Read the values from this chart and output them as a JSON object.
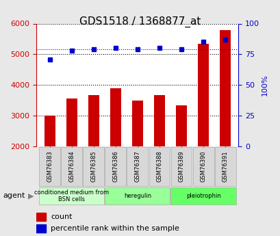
{
  "title": "GDS1518 / 1368877_at",
  "samples": [
    "GSM76383",
    "GSM76384",
    "GSM76385",
    "GSM76386",
    "GSM76387",
    "GSM76388",
    "GSM76389",
    "GSM76390",
    "GSM76391"
  ],
  "counts": [
    3000,
    3560,
    3670,
    3900,
    3490,
    3680,
    3330,
    5350,
    5780
  ],
  "percentiles": [
    71,
    78,
    79,
    80,
    79,
    80,
    79,
    85,
    87
  ],
  "ylim_left": [
    2000,
    6000
  ],
  "ylim_right": [
    0,
    100
  ],
  "yticks_left": [
    2000,
    3000,
    4000,
    5000,
    6000
  ],
  "yticks_right": [
    0,
    25,
    50,
    75,
    100
  ],
  "bar_color": "#cc0000",
  "dot_color": "#0000cc",
  "groups": [
    {
      "label": "conditioned medium from\nBSN cells",
      "start": 0,
      "end": 3,
      "color": "#ccffcc"
    },
    {
      "label": "heregulin",
      "start": 3,
      "end": 6,
      "color": "#99ff99"
    },
    {
      "label": "pleiotrophin",
      "start": 6,
      "end": 9,
      "color": "#66ff66"
    }
  ],
  "agent_label": "agent",
  "legend_count_label": "count",
  "legend_pct_label": "percentile rank within the sample",
  "background_color": "#e8e8e8",
  "plot_bg": "#ffffff",
  "title_color": "#000000",
  "left_tick_color": "#cc0000",
  "right_tick_color": "#0000cc"
}
